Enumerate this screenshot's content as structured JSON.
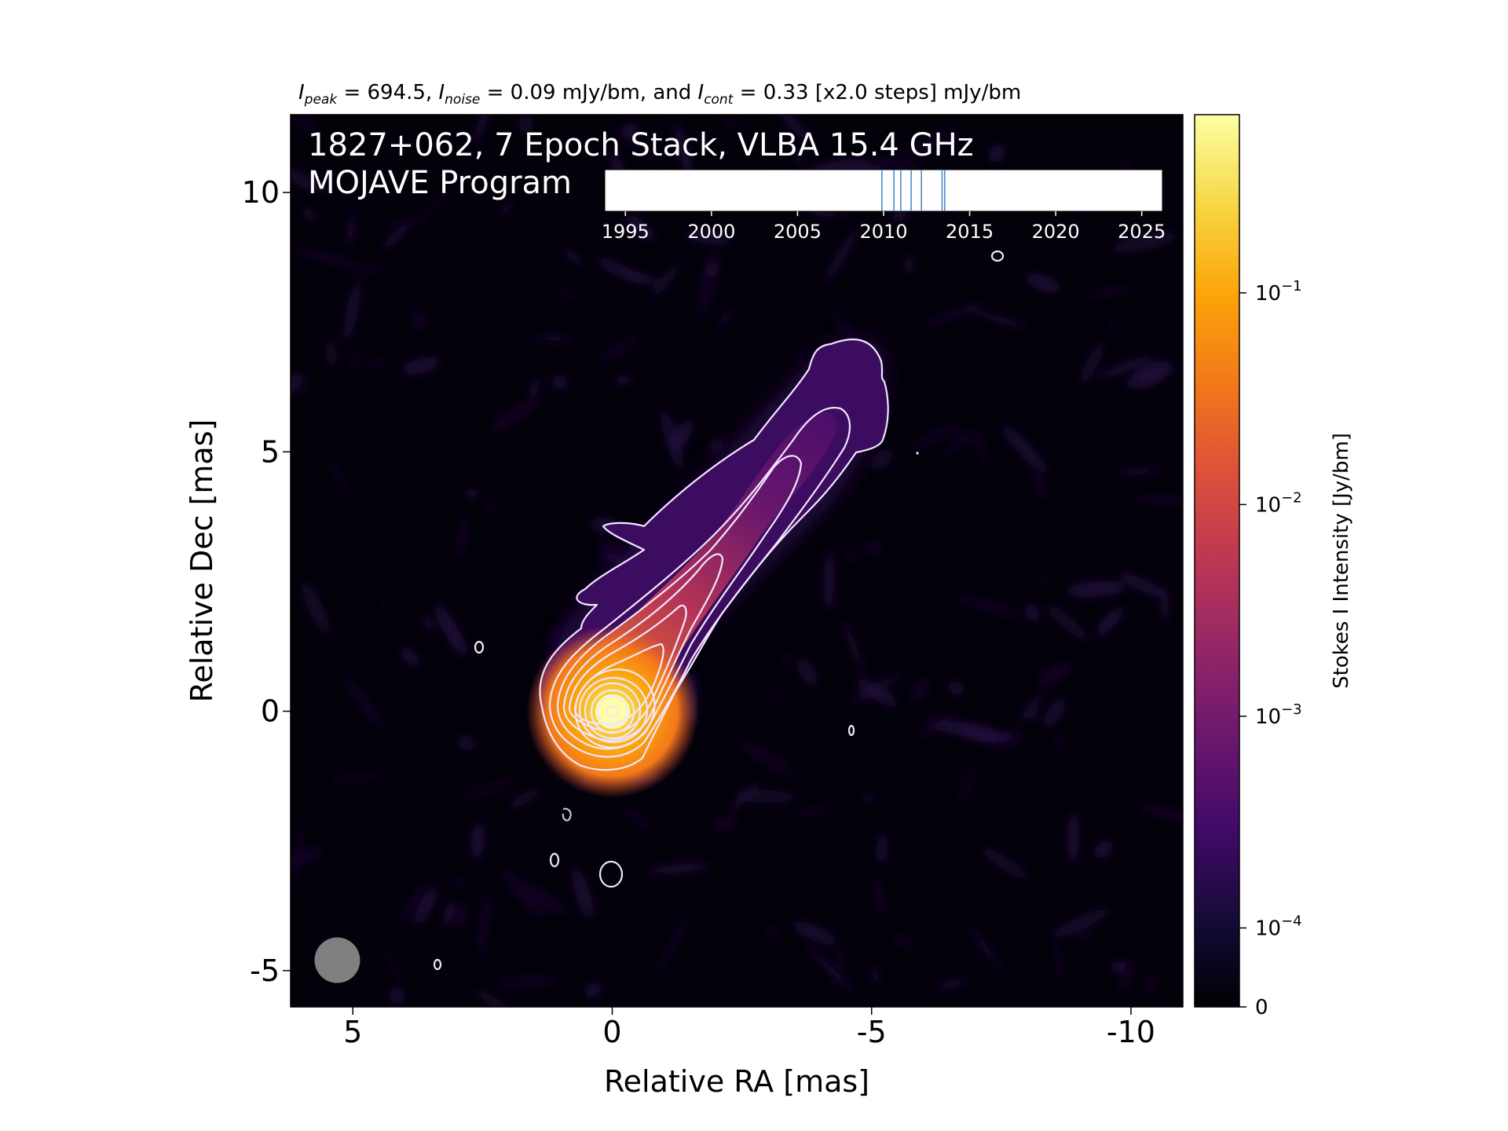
{
  "chart_data": {
    "type": "heatmap",
    "header": {
      "peak_sym": "I",
      "peak_sub": "peak",
      "peak_val": " = 694.5, ",
      "noise_sym": "I",
      "noise_sub": "noise",
      "noise_val": " = 0.09 mJy/bm, and ",
      "cont_sym": "I",
      "cont_sub": "cont",
      "cont_val": " = 0.33 [x2.0 steps] mJy/bm"
    },
    "title_line1": "1827+062, 7 Epoch Stack, VLBA 15.4 GHz",
    "title_line2": "MOJAVE Program",
    "xlabel": "Relative RA [mas]",
    "ylabel": "Relative Dec [mas]",
    "xlim": [
      6.2,
      -11
    ],
    "ylim": [
      -5.7,
      11.5
    ],
    "xticks": [
      5,
      0,
      -5,
      -10
    ],
    "xtick_labels": [
      "5",
      "0",
      "-5",
      "-10"
    ],
    "yticks": [
      -5,
      0,
      5,
      10
    ],
    "ytick_labels": [
      "-5",
      "0",
      "5",
      "10"
    ],
    "peak_position": [
      0,
      0
    ],
    "contour_levels_mJy": [
      0.33,
      0.66,
      1.32,
      2.64,
      5.28,
      10.56,
      21.12,
      42.24,
      84.48,
      168.96,
      337.92
    ],
    "beam": {
      "x": 5.3,
      "y": -4.8,
      "major": 0.85,
      "minor": 0.85,
      "color": "#808080"
    },
    "jet_position_angle_deg": -45,
    "colorbar": {
      "label": "Stokes I Intensity [Jy/bm]",
      "colormap": "inferno",
      "scale": "log",
      "ticks": [
        {
          "value": 0.1,
          "base": "10",
          "exp": "−1"
        },
        {
          "value": 0.01,
          "base": "10",
          "exp": "−2"
        },
        {
          "value": 0.001,
          "base": "10",
          "exp": "−3"
        },
        {
          "value": 0.0001,
          "base": "10",
          "exp": "−4"
        },
        {
          "value": 0,
          "base": "0",
          "exp": ""
        }
      ]
    },
    "epoch_timeline": {
      "range": [
        1993.8,
        2026.2
      ],
      "ticks": [
        1995,
        2000,
        2005,
        2010,
        2015,
        2020,
        2025
      ],
      "tick_labels": [
        "1995",
        "2000",
        "2005",
        "2010",
        "2015",
        "2020",
        "2025"
      ],
      "epochs": [
        2009.9,
        2010.6,
        2011.0,
        2011.6,
        2012.2,
        2013.4,
        2013.55
      ],
      "epoch_color": "#4c8cc9"
    }
  }
}
